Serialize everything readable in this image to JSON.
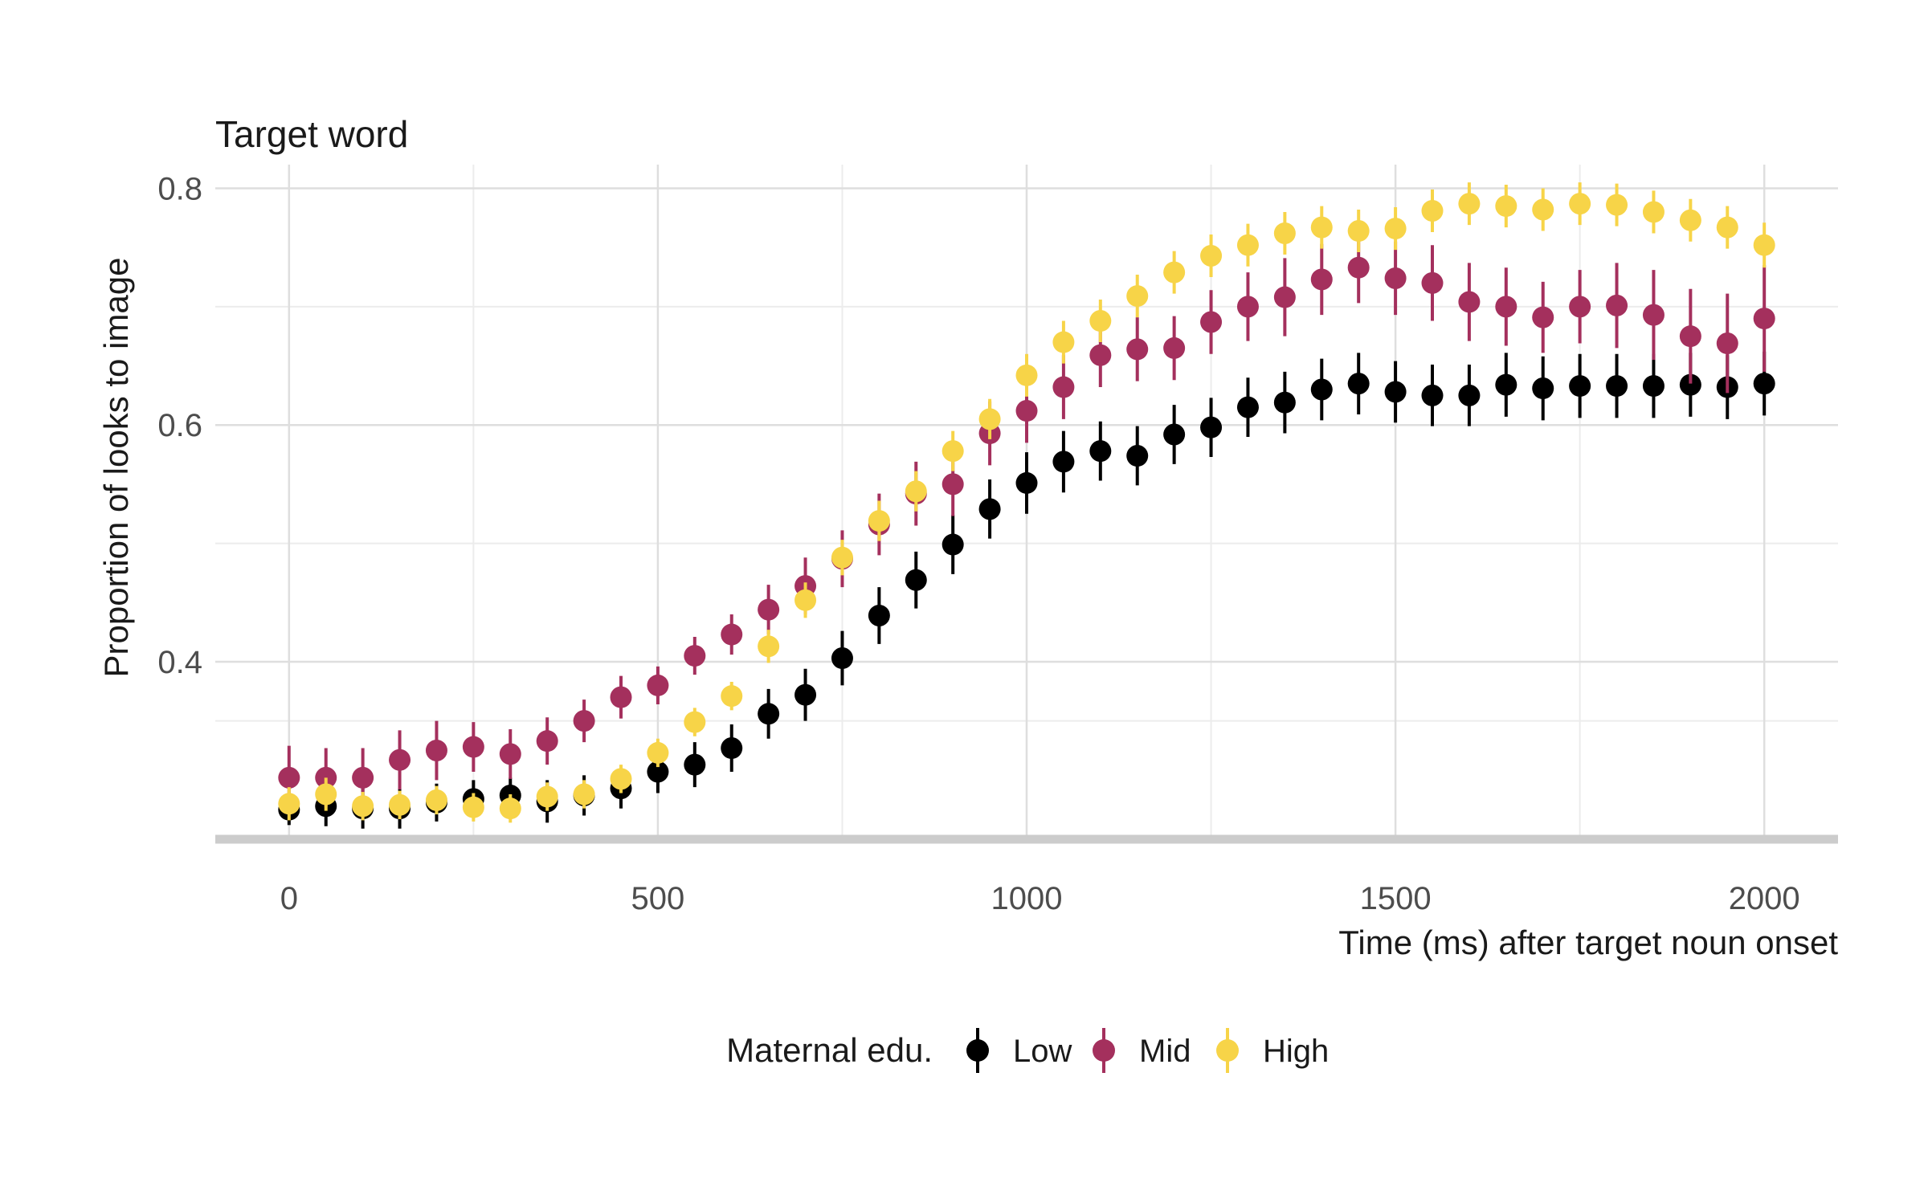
{
  "chart_data": {
    "type": "scatter",
    "title": "Target word",
    "xlabel": "Time (ms) after target noun onset",
    "ylabel": "Proportion of looks to image",
    "xlim": [
      -100,
      2100
    ],
    "ylim": [
      0.25,
      0.82
    ],
    "x_ticks": [
      0,
      500,
      1000,
      1500,
      2000
    ],
    "x_tick_labels": [
      "0",
      "500",
      "1000",
      "1500",
      "2000"
    ],
    "y_ticks": [
      0.4,
      0.6,
      0.8
    ],
    "y_tick_labels": [
      "0.4",
      "0.6",
      "0.8"
    ],
    "grid": true,
    "legend": {
      "title": "Maternal edu.",
      "position": "bottom",
      "entries": [
        "Low",
        "Mid",
        "High"
      ]
    },
    "x": [
      0,
      50,
      100,
      150,
      200,
      250,
      300,
      350,
      400,
      450,
      500,
      550,
      600,
      650,
      700,
      750,
      800,
      850,
      900,
      950,
      1000,
      1050,
      1100,
      1150,
      1200,
      1250,
      1300,
      1350,
      1400,
      1450,
      1500,
      1550,
      1600,
      1650,
      1700,
      1750,
      1800,
      1850,
      1900,
      1950,
      2000
    ],
    "series": [
      {
        "name": "Low",
        "color": "#000000",
        "values": [
          0.275,
          0.278,
          0.276,
          0.276,
          0.281,
          0.284,
          0.287,
          0.282,
          0.287,
          0.293,
          0.307,
          0.313,
          0.327,
          0.356,
          0.372,
          0.403,
          0.439,
          0.469,
          0.499,
          0.529,
          0.551,
          0.569,
          0.578,
          0.574,
          0.592,
          0.598,
          0.615,
          0.619,
          0.63,
          0.635,
          0.628,
          0.625,
          0.625,
          0.634,
          0.631,
          0.633,
          0.633,
          0.633,
          0.634,
          0.632,
          0.635
        ],
        "error": [
          0.013,
          0.017,
          0.017,
          0.017,
          0.016,
          0.016,
          0.015,
          0.018,
          0.017,
          0.017,
          0.018,
          0.019,
          0.02,
          0.021,
          0.022,
          0.023,
          0.024,
          0.024,
          0.025,
          0.025,
          0.026,
          0.026,
          0.025,
          0.025,
          0.025,
          0.025,
          0.025,
          0.026,
          0.026,
          0.026,
          0.026,
          0.026,
          0.026,
          0.027,
          0.027,
          0.027,
          0.027,
          0.027,
          0.027,
          0.027,
          0.027
        ]
      },
      {
        "name": "Mid",
        "color": "#A4305D",
        "values": [
          0.302,
          0.302,
          0.302,
          0.317,
          0.325,
          0.328,
          0.322,
          0.333,
          0.35,
          0.37,
          0.38,
          0.405,
          0.423,
          0.444,
          0.464,
          0.487,
          0.516,
          0.542,
          0.55,
          0.593,
          0.612,
          0.632,
          0.659,
          0.664,
          0.665,
          0.687,
          0.7,
          0.708,
          0.723,
          0.733,
          0.724,
          0.72,
          0.704,
          0.7,
          0.691,
          0.7,
          0.701,
          0.693,
          0.675,
          0.669,
          0.69
        ]
      },
      {
        "name": "High",
        "color": "#F7D448",
        "values": [
          0.28,
          0.288,
          0.278,
          0.279,
          0.283,
          0.277,
          0.276,
          0.286,
          0.288,
          0.301,
          0.323,
          0.349,
          0.371,
          0.413,
          0.452,
          0.488,
          0.519,
          0.544,
          0.578,
          0.605,
          0.642,
          0.67,
          0.688,
          0.709,
          0.729,
          0.743,
          0.752,
          0.762,
          0.767,
          0.764,
          0.766,
          0.781,
          0.787,
          0.785,
          0.782,
          0.787,
          0.786,
          0.78,
          0.773,
          0.767,
          0.752
        ]
      }
    ],
    "error_bars": {
      "Mid": [
        0.027,
        0.025,
        0.025,
        0.025,
        0.025,
        0.021,
        0.021,
        0.02,
        0.018,
        0.018,
        0.016,
        0.016,
        0.017,
        0.021,
        0.024,
        0.024,
        0.026,
        0.027,
        0.027,
        0.027,
        0.027,
        0.027,
        0.027,
        0.027,
        0.027,
        0.027,
        0.029,
        0.033,
        0.03,
        0.03,
        0.031,
        0.032,
        0.033,
        0.033,
        0.03,
        0.031,
        0.036,
        0.038,
        0.04,
        0.042,
        0.045
      ],
      "High": [
        0.014,
        0.014,
        0.012,
        0.012,
        0.012,
        0.012,
        0.012,
        0.012,
        0.012,
        0.012,
        0.012,
        0.012,
        0.012,
        0.014,
        0.015,
        0.015,
        0.017,
        0.017,
        0.017,
        0.017,
        0.018,
        0.018,
        0.018,
        0.018,
        0.018,
        0.018,
        0.018,
        0.018,
        0.018,
        0.018,
        0.018,
        0.018,
        0.018,
        0.018,
        0.018,
        0.018,
        0.018,
        0.018,
        0.018,
        0.018,
        0.019
      ]
    }
  }
}
